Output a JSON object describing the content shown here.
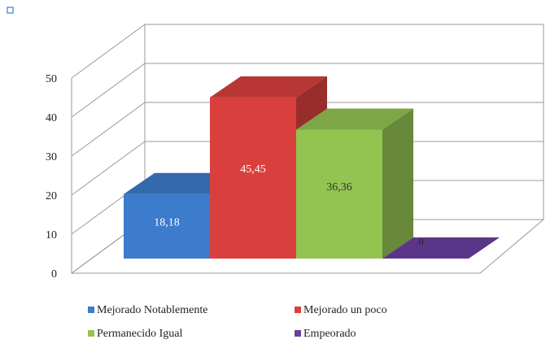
{
  "chart_data": {
    "type": "bar3d",
    "series": [
      {
        "name": "Mejorado Notablemente",
        "color": "#3d7bcc",
        "values": [
          18.18
        ],
        "value_labels": [
          "18,18"
        ]
      },
      {
        "name": "Mejorado un poco",
        "color": "#d9403d",
        "values": [
          45.45
        ],
        "value_labels": [
          "45,45"
        ]
      },
      {
        "name": "Permanecido Igual",
        "color": "#93c452",
        "values": [
          36.36
        ],
        "value_labels": [
          "36,36"
        ]
      },
      {
        "name": "Empeorado",
        "color": "#6b3fa0",
        "values": [
          0
        ]
      }
    ],
    "ylim": [
      0,
      50
    ],
    "yticks": [
      0,
      10,
      20,
      30,
      40,
      50
    ],
    "grid": true,
    "legend": "bottom"
  }
}
